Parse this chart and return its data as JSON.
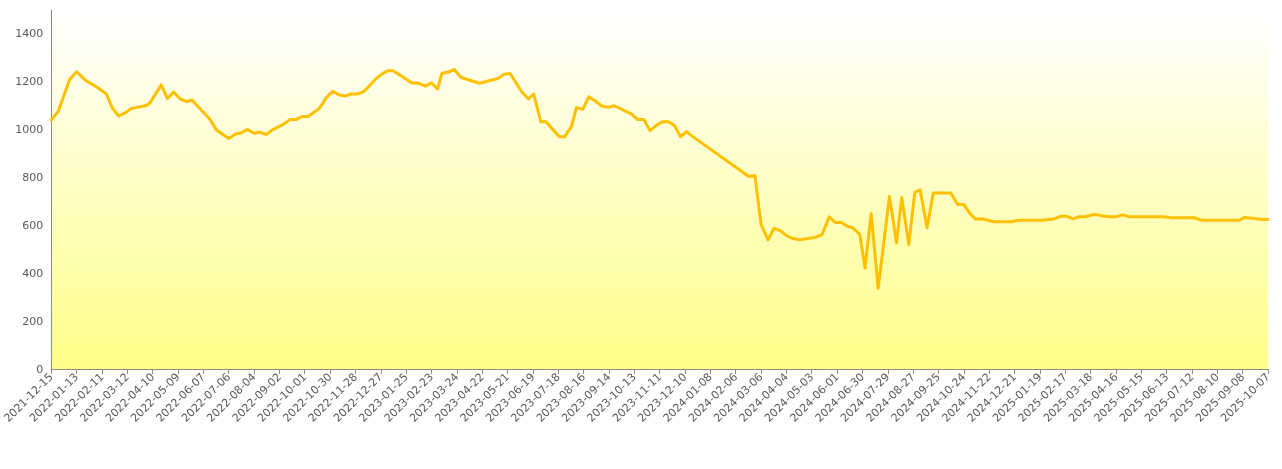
{
  "chart_data": {
    "type": "line",
    "color": "#ffc000",
    "ylim": [
      0,
      1500
    ],
    "yticks": [
      0,
      200,
      400,
      600,
      800,
      1000,
      1200,
      1400
    ],
    "grid": false,
    "marker": "none",
    "line_style": "solid",
    "xlim": [
      "2021-12-15",
      "2025-10-07"
    ],
    "xticks": [
      "2021-12-15",
      "2022-01-13",
      "2022-02-11",
      "2022-03-12",
      "2022-04-10",
      "2022-05-09",
      "2022-06-07",
      "2022-07-06",
      "2022-08-04",
      "2022-09-02",
      "2022-10-01",
      "2022-10-30",
      "2022-11-28",
      "2022-12-27",
      "2023-01-25",
      "2023-02-23",
      "2023-03-24",
      "2023-04-22",
      "2023-05-21",
      "2023-06-19",
      "2023-07-18",
      "2023-08-16",
      "2023-09-14",
      "2023-10-13",
      "2023-11-11",
      "2023-12-10",
      "2024-01-08",
      "2024-02-06",
      "2024-03-06",
      "2024-04-04",
      "2024-05-03",
      "2024-06-01",
      "2024-06-30",
      "2024-07-29",
      "2024-08-27",
      "2024-09-25",
      "2024-10-24",
      "2024-11-22",
      "2024-12-21",
      "2025-01-19",
      "2025-02-17",
      "2025-03-18",
      "2025-04-16",
      "2025-05-15",
      "2025-06-13",
      "2025-07-12",
      "2025-08-10",
      "2025-09-08",
      "2025-10-07"
    ],
    "x": [
      "2021-12-15",
      "2021-12-23",
      "2022-01-05",
      "2022-01-13",
      "2022-01-24",
      "2022-02-06",
      "2022-02-16",
      "2022-02-23",
      "2022-03-02",
      "2022-03-10",
      "2022-03-17",
      "2022-04-03",
      "2022-04-07",
      "2022-04-20",
      "2022-04-27",
      "2022-05-04",
      "2022-05-11",
      "2022-05-19",
      "2022-05-25",
      "2022-06-14",
      "2022-06-22",
      "2022-07-06",
      "2022-07-14",
      "2022-07-20",
      "2022-07-27",
      "2022-08-04",
      "2022-08-10",
      "2022-08-18",
      "2022-08-25",
      "2022-09-06",
      "2022-09-14",
      "2022-09-21",
      "2022-09-28",
      "2022-10-05",
      "2022-10-18",
      "2022-10-26",
      "2022-11-02",
      "2022-11-09",
      "2022-11-16",
      "2022-11-23",
      "2022-11-30",
      "2022-12-07",
      "2022-12-13",
      "2022-12-21",
      "2022-12-28",
      "2023-01-04",
      "2023-01-10",
      "2023-01-18",
      "2023-01-31",
      "2023-02-08",
      "2023-02-16",
      "2023-02-23",
      "2023-03-02",
      "2023-03-07",
      "2023-03-15",
      "2023-03-21",
      "2023-03-29",
      "2023-04-19",
      "2023-05-10",
      "2023-05-17",
      "2023-05-24",
      "2023-05-30",
      "2023-06-07",
      "2023-06-14",
      "2023-06-20",
      "2023-06-28",
      "2023-07-04",
      "2023-07-19",
      "2023-07-25",
      "2023-08-02",
      "2023-08-08",
      "2023-08-15",
      "2023-08-22",
      "2023-08-29",
      "2023-09-06",
      "2023-09-13",
      "2023-09-20",
      "2023-10-10",
      "2023-10-17",
      "2023-10-24",
      "2023-10-31",
      "2023-11-07",
      "2023-11-14",
      "2023-11-21",
      "2023-11-28",
      "2023-12-05",
      "2023-12-12",
      "2023-12-19",
      "2024-02-21",
      "2024-02-28",
      "2024-03-06",
      "2024-03-14",
      "2024-03-21",
      "2024-03-28",
      "2024-04-05",
      "2024-04-12",
      "2024-04-19",
      "2024-04-27",
      "2024-05-07",
      "2024-05-15",
      "2024-05-23",
      "2024-05-30",
      "2024-06-06",
      "2024-06-13",
      "2024-06-19",
      "2024-06-27",
      "2024-07-03",
      "2024-07-10",
      "2024-07-18",
      "2024-07-31",
      "2024-08-08",
      "2024-08-14",
      "2024-08-22",
      "2024-08-29",
      "2024-09-04",
      "2024-09-12",
      "2024-09-19",
      "2024-10-09",
      "2024-10-17",
      "2024-10-24",
      "2024-10-31",
      "2024-11-06",
      "2024-11-14",
      "2024-11-28",
      "2024-12-17",
      "2024-12-26",
      "2025-01-21",
      "2025-02-04",
      "2025-02-12",
      "2025-02-19",
      "2025-02-26",
      "2025-03-05",
      "2025-03-12",
      "2025-03-20",
      "2025-03-26",
      "2025-04-01",
      "2025-04-10",
      "2025-04-16",
      "2025-04-24",
      "2025-05-01",
      "2025-06-10",
      "2025-06-18",
      "2025-07-15",
      "2025-07-23",
      "2025-09-04",
      "2025-09-10",
      "2025-10-01",
      "2025-10-07"
    ],
    "values": [
      1040,
      1076,
      1210,
      1242,
      1204,
      1176,
      1149,
      1090,
      1057,
      1071,
      1089,
      1101,
      1112,
      1187,
      1130,
      1157,
      1130,
      1117,
      1124,
      1046,
      999,
      963,
      982,
      986,
      1001,
      985,
      990,
      980,
      999,
      1021,
      1042,
      1042,
      1055,
      1055,
      1090,
      1135,
      1160,
      1146,
      1140,
      1149,
      1149,
      1158,
      1179,
      1211,
      1232,
      1246,
      1246,
      1228,
      1196,
      1194,
      1182,
      1196,
      1170,
      1235,
      1242,
      1251,
      1218,
      1194,
      1214,
      1232,
      1235,
      1200,
      1155,
      1128,
      1149,
      1033,
      1033,
      971,
      969,
      1012,
      1093,
      1085,
      1137,
      1121,
      1099,
      1093,
      1100,
      1065,
      1042,
      1042,
      996,
      1017,
      1033,
      1033,
      1017,
      971,
      992,
      971,
      804,
      808,
      604,
      540,
      588,
      578,
      555,
      545,
      540,
      544,
      550,
      562,
      636,
      612,
      612,
      596,
      590,
      562,
      422,
      650,
      337,
      721,
      527,
      717,
      520,
      738,
      749,
      590,
      735,
      735,
      687,
      687,
      650,
      627,
      627,
      615,
      615,
      622,
      622,
      627,
      638,
      638,
      627,
      636,
      636,
      644,
      644,
      639,
      636,
      636,
      644,
      636,
      636,
      632,
      632,
      621,
      621,
      633,
      625,
      625
    ]
  }
}
